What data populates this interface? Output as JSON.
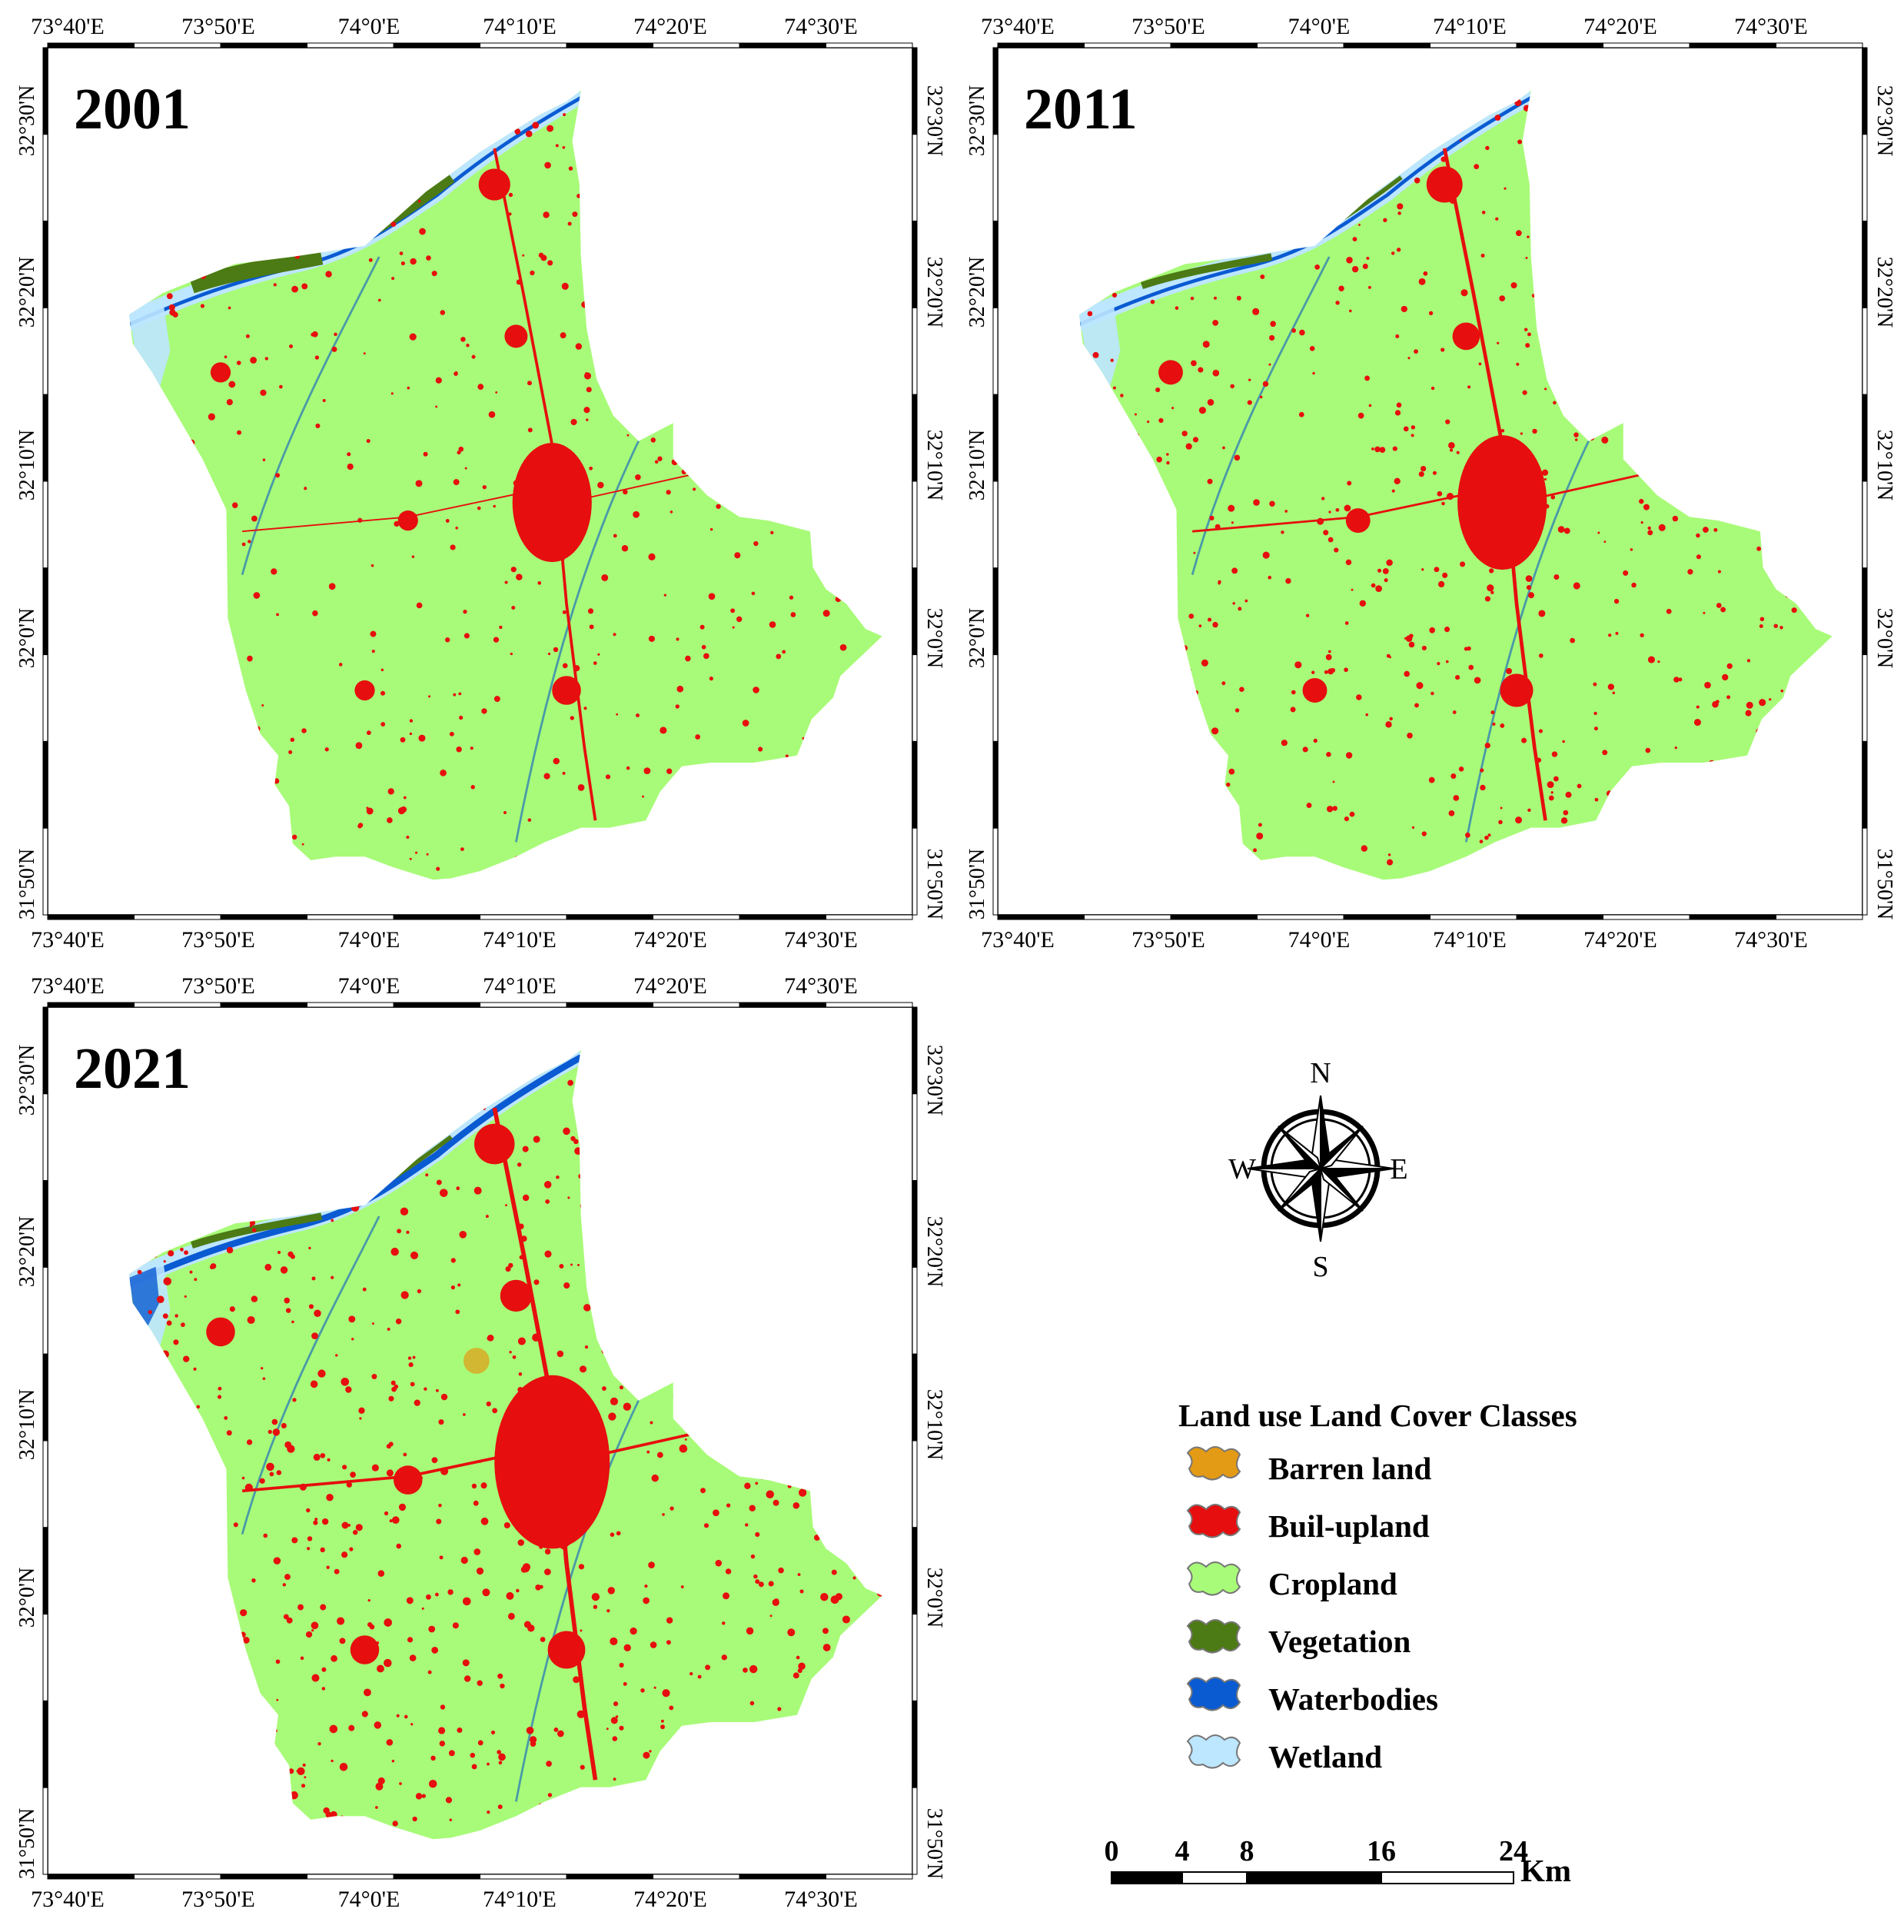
{
  "map": {
    "lon_labels": [
      "73°40'E",
      "73°50'E",
      "74°0'E",
      "74°10'E",
      "74°20'E",
      "74°30'E"
    ],
    "lat_labels": [
      "32°30'N",
      "32°20'N",
      "32°10'N",
      "32°0'N",
      "31°50'N"
    ],
    "panels": [
      {
        "year": "2001"
      },
      {
        "year": "2011"
      },
      {
        "year": "2021"
      }
    ],
    "colors": {
      "barren": "#e39a14",
      "builtup": "#e60e0e",
      "cropland": "#a8fb78",
      "vegetation": "#4c7a14",
      "waterbodies": "#0a5ad2",
      "wetland": "#bde6ff"
    }
  },
  "compass": {
    "n": "N",
    "s": "S",
    "e": "E",
    "w": "W"
  },
  "legend": {
    "title": "Land use Land Cover Classes",
    "items": [
      {
        "label": "Barren land",
        "color": "#e39a14"
      },
      {
        "label": "Buil-upland",
        "color": "#e60e0e"
      },
      {
        "label": "Cropland",
        "color": "#a8fb78"
      },
      {
        "label": "Vegetation",
        "color": "#4c7a14"
      },
      {
        "label": "Waterbodies",
        "color": "#0a5ad2"
      },
      {
        "label": "Wetland",
        "color": "#bde6ff"
      }
    ]
  },
  "scale_bar": {
    "ticks": [
      "0",
      "4",
      "8",
      "16",
      "24"
    ],
    "unit": "Km"
  }
}
